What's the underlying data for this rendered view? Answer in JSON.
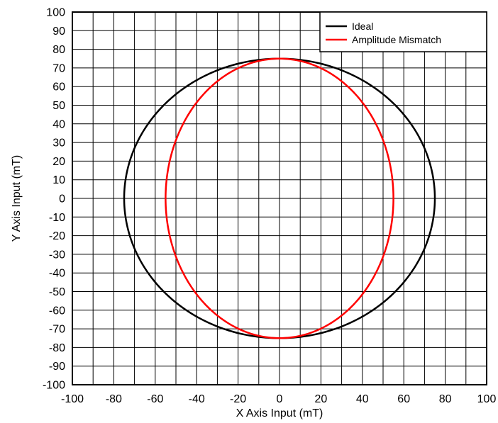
{
  "chart_data": {
    "type": "line",
    "xlabel": "X Axis Input (mT)",
    "ylabel": "Y Axis Input (mT)",
    "xlim": [
      -100,
      100
    ],
    "ylim": [
      -100,
      100
    ],
    "x_ticks": [
      -100,
      -80,
      -60,
      -40,
      -20,
      0,
      20,
      40,
      60,
      80,
      100
    ],
    "y_ticks": [
      100,
      90,
      80,
      70,
      60,
      50,
      40,
      30,
      20,
      10,
      0,
      -10,
      -20,
      -30,
      -40,
      -50,
      -60,
      -70,
      -80,
      -90,
      -100
    ],
    "x_minor_step": 10,
    "grid": true,
    "legend_position": "top-right",
    "series": [
      {
        "name": "Ideal",
        "color": "#000000",
        "shape": "ellipse",
        "center": [
          0,
          0
        ],
        "x_radius": 75,
        "y_radius": 75
      },
      {
        "name": "Amplitude Mismatch",
        "color": "#ff0000",
        "shape": "ellipse",
        "center": [
          0,
          0
        ],
        "x_radius": 55,
        "y_radius": 75
      }
    ]
  }
}
